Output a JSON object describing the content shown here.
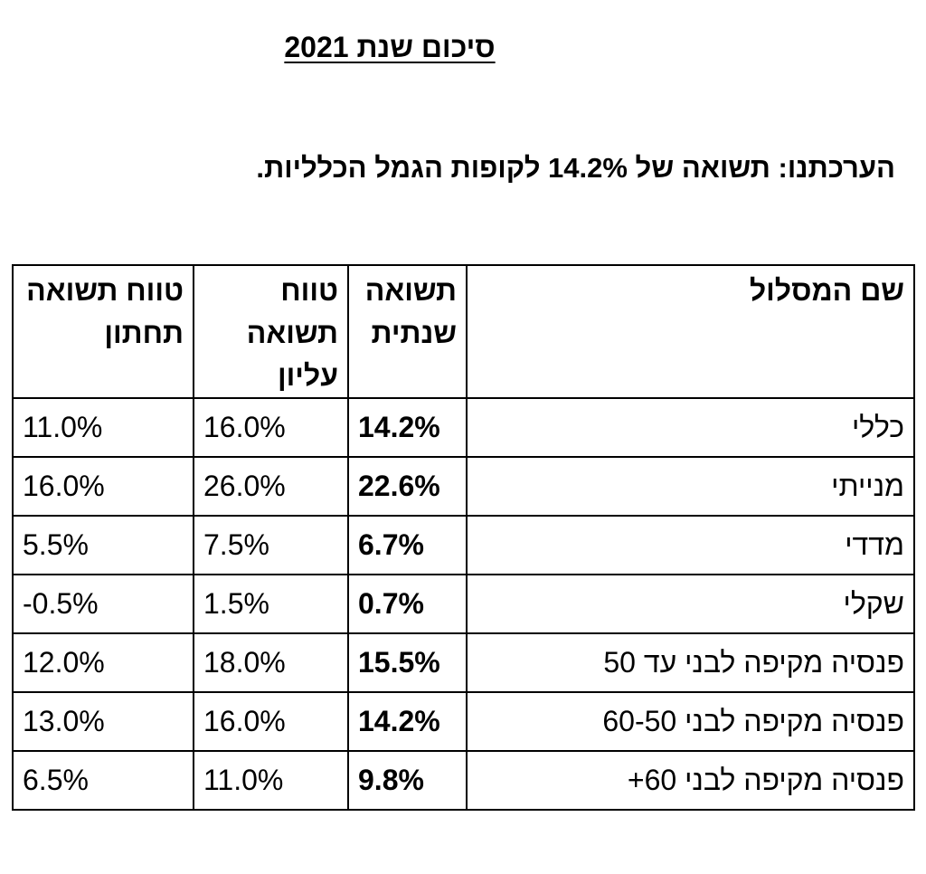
{
  "title": "סיכום שנת 2021",
  "subtitle": "הערכתנו: תשואה של 14.2% לקופות הגמל הכלליות.",
  "table": {
    "headers": {
      "name": "שם המסלול",
      "annual": "תשואה שנתית",
      "upper": "טווח תשואה עליון",
      "lower": "טווח תשואה תחתון"
    },
    "rows": [
      {
        "name": "כללי",
        "annual": "14.2%",
        "upper": "16.0%",
        "lower": "11.0%"
      },
      {
        "name": "מנייתי",
        "annual": "22.6%",
        "upper": "26.0%",
        "lower": "16.0%"
      },
      {
        "name": "מדדי",
        "annual": "6.7%",
        "upper": "7.5%",
        "lower": "5.5%"
      },
      {
        "name": "שקלי",
        "annual": "0.7%",
        "upper": "1.5%",
        "lower": "-0.5%"
      },
      {
        "name": "פנסיה מקיפה לבני עד 50",
        "annual": "15.5%",
        "upper": "18.0%",
        "lower": "12.0%"
      },
      {
        "name": "פנסיה מקיפה לבני 60-50",
        "annual": "14.2%",
        "upper": "16.0%",
        "lower": "13.0%"
      },
      {
        "name": "פנסיה מקיפה לבני 60+",
        "annual": "9.8%",
        "upper": "11.0%",
        "lower": "6.5%"
      }
    ]
  }
}
